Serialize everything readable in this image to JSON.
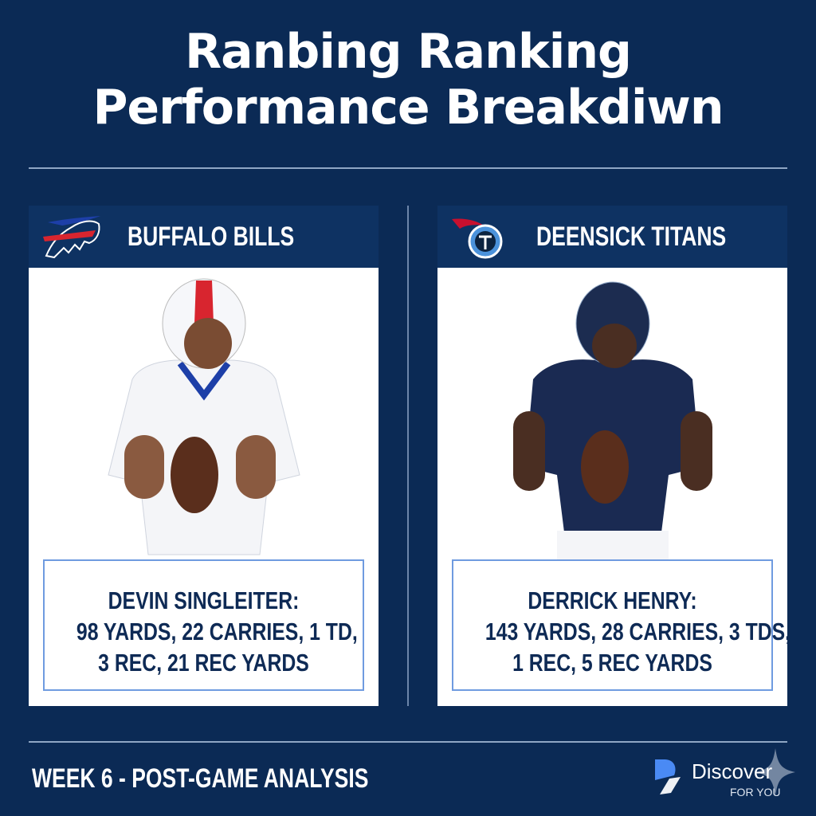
{
  "title": {
    "line1": "Ranbing Ranking",
    "line2": "Performance Breakdiwn"
  },
  "cards": [
    {
      "team": "BUFFALO BILLS",
      "logo": "bills-logo",
      "player_name": "DEVIN SINGLEITER:",
      "stats_line1": "98 YARDS, 22 CARRIES, 1 TD,",
      "stats_line2": "3 REC, 21 REC YARDS",
      "jersey_color": "#ffffff",
      "trim_color": "#c8102e"
    },
    {
      "team": "DEENSICK TITANS",
      "logo": "titans-logo",
      "player_name": "DERRICK HENRY:",
      "stats_line1": "143 YARDS, 28 CARRIES, 3 TDS,",
      "stats_line2": "1 REC, 5 REC YARDS",
      "jersey_color": "#1a2a52",
      "trim_color": "#4b92db"
    }
  ],
  "footer": {
    "text": "WEEK 6 - POST-GAME ANALYSIS",
    "brand": "Discover",
    "brand_sub": "FOR YOU"
  },
  "colors": {
    "background": "#0b2a55",
    "header": "#0e3262",
    "stat_border": "#6f9be0",
    "stat_text": "#0e2a55"
  }
}
